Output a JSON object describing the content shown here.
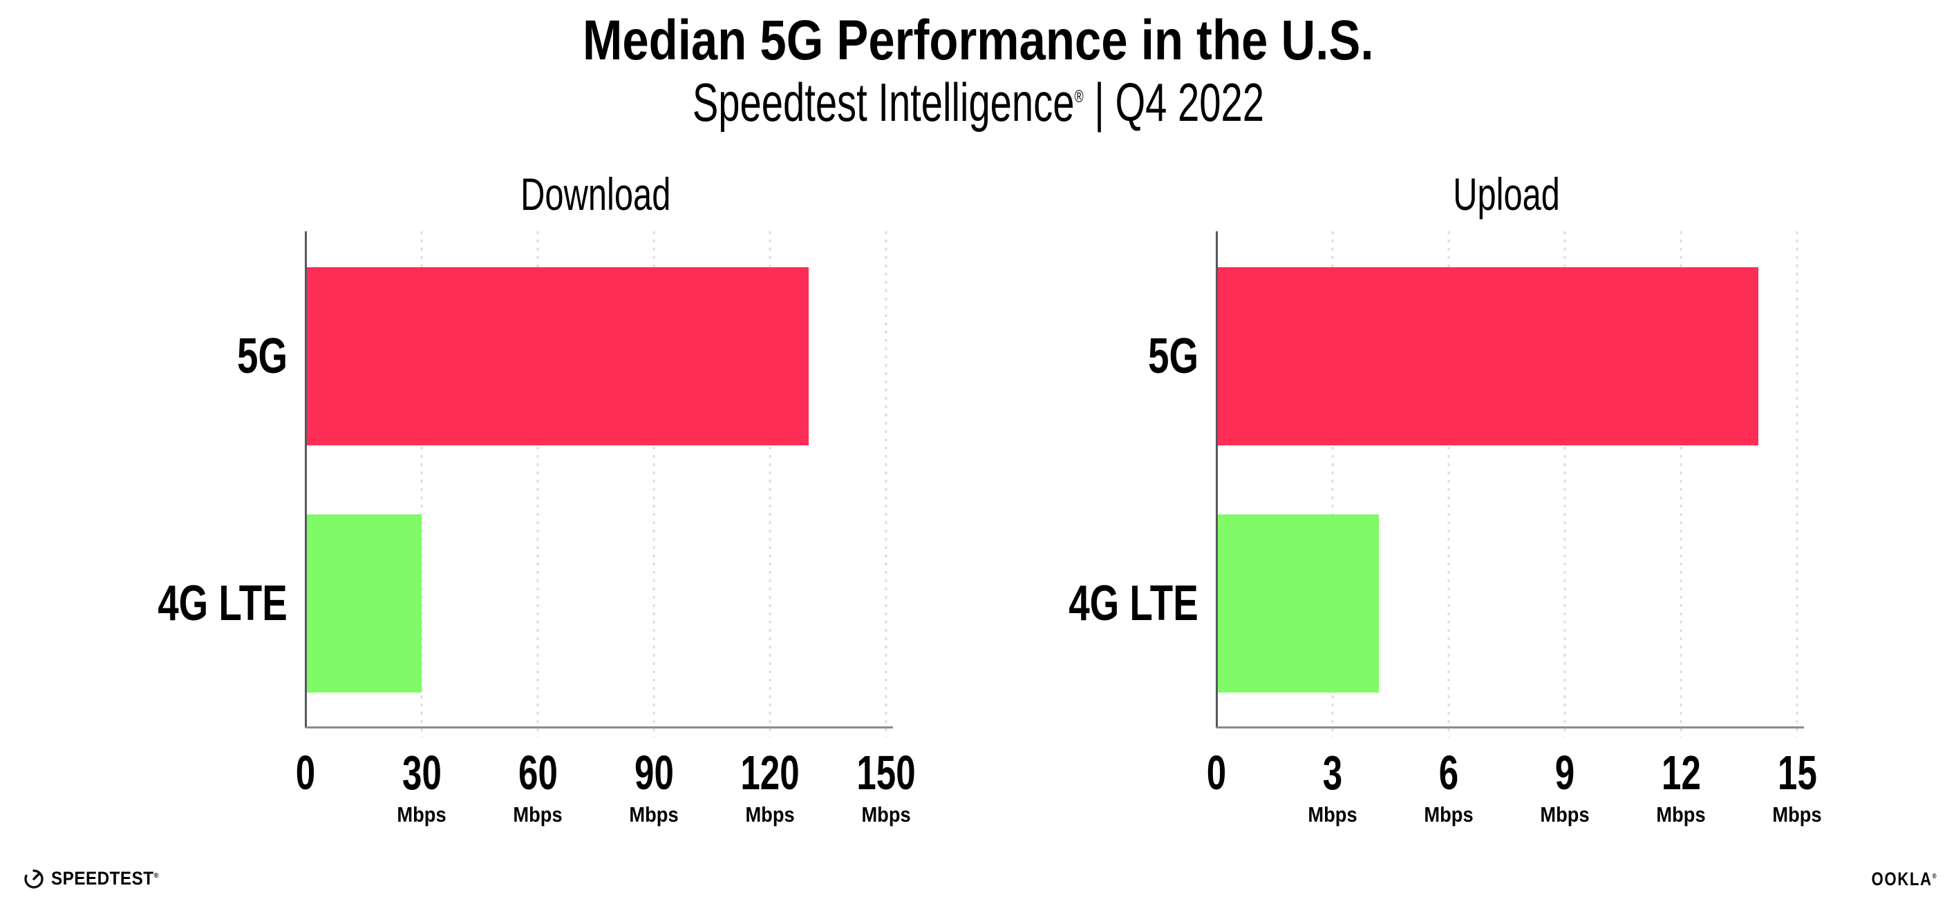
{
  "header": {
    "title": "Median 5G Performance in the U.S.",
    "subtitle_brand": "Speedtest Intelligence",
    "subtitle_reg": "®",
    "subtitle_rest": " | Q4 2022"
  },
  "colors": {
    "bar_5g": "#FE2D55",
    "bar_4g_lte": "#80FA66",
    "gridline": "#dcdde8",
    "y_axis": "#56575e",
    "x_axis": "#8a8b91",
    "text": "#000000",
    "background": "#ffffff"
  },
  "chart_data": [
    {
      "type": "bar",
      "orientation": "horizontal",
      "title": "Download",
      "categories": [
        "5G",
        "4G LTE"
      ],
      "values": [
        130,
        30
      ],
      "unit": "Mbps",
      "xlim": [
        0,
        150
      ],
      "xticks": [
        0,
        30,
        60,
        90,
        120,
        150
      ],
      "xtick_labels": [
        {
          "value": "0",
          "unit": ""
        },
        {
          "value": "30",
          "unit": "Mbps"
        },
        {
          "value": "60",
          "unit": "Mbps"
        },
        {
          "value": "90",
          "unit": "Mbps"
        },
        {
          "value": "120",
          "unit": "Mbps"
        },
        {
          "value": "150",
          "unit": "Mbps"
        }
      ],
      "bar_colors": [
        "#FE2D55",
        "#80FA66"
      ],
      "grid": "vertical-dotted",
      "legend": "none"
    },
    {
      "type": "bar",
      "orientation": "horizontal",
      "title": "Upload",
      "categories": [
        "5G",
        "4G LTE"
      ],
      "values": [
        14,
        4.2
      ],
      "unit": "Mbps",
      "xlim": [
        0,
        15
      ],
      "xticks": [
        0,
        3,
        6,
        9,
        12,
        15
      ],
      "xtick_labels": [
        {
          "value": "0",
          "unit": ""
        },
        {
          "value": "3",
          "unit": "Mbps"
        },
        {
          "value": "6",
          "unit": "Mbps"
        },
        {
          "value": "9",
          "unit": "Mbps"
        },
        {
          "value": "12",
          "unit": "Mbps"
        },
        {
          "value": "15",
          "unit": "Mbps"
        }
      ],
      "bar_colors": [
        "#FE2D55",
        "#80FA66"
      ],
      "grid": "vertical-dotted",
      "legend": "none"
    }
  ],
  "footer": {
    "speedtest_label": "SPEEDTEST",
    "speedtest_reg": "®",
    "ookla_label": "OOKLA",
    "ookla_reg": "®"
  }
}
